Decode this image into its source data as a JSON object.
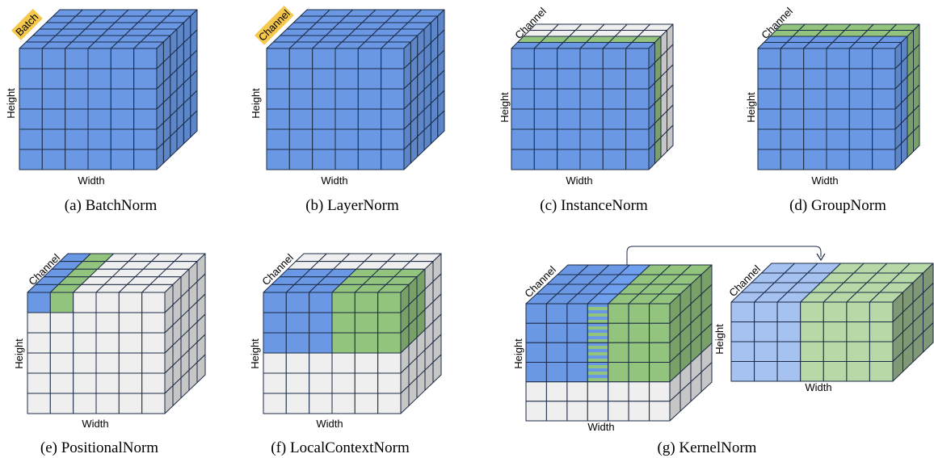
{
  "colors": {
    "blue": "#6a98e4",
    "green": "#93c47d",
    "grey": "#efefef",
    "light_blue": "#a6c2f0",
    "light_green": "#b7d9a8",
    "tag_fill": "#f6c84c"
  },
  "panels": {
    "a": {
      "caption": "(a) BatchNorm",
      "depth_label": "Batch",
      "height_label": "Height",
      "width_label": "Width"
    },
    "b": {
      "caption": "(b) LayerNorm",
      "depth_label": "Channel",
      "height_label": "Height",
      "width_label": "Width"
    },
    "c": {
      "caption": "(c) InstanceNorm",
      "depth_label": "Channel",
      "height_label": "Height",
      "width_label": "Width"
    },
    "d": {
      "caption": "(d) GroupNorm",
      "depth_label": "Channel",
      "height_label": "Height",
      "width_label": "Width"
    },
    "e": {
      "caption": "(e) PositionalNorm",
      "depth_label": "Channel",
      "height_label": "Height",
      "width_label": "Width"
    },
    "f": {
      "caption": "(f) LocalContextNorm",
      "depth_label": "Channel",
      "height_label": "Height",
      "width_label": "Width"
    },
    "g": {
      "caption": "(g) KernelNorm",
      "depth_label": "Channel",
      "height_label": "Height",
      "width_label": "Width",
      "depth_label_2": "Channel",
      "height_label_2": "Height",
      "width_label_2": "Width"
    }
  }
}
